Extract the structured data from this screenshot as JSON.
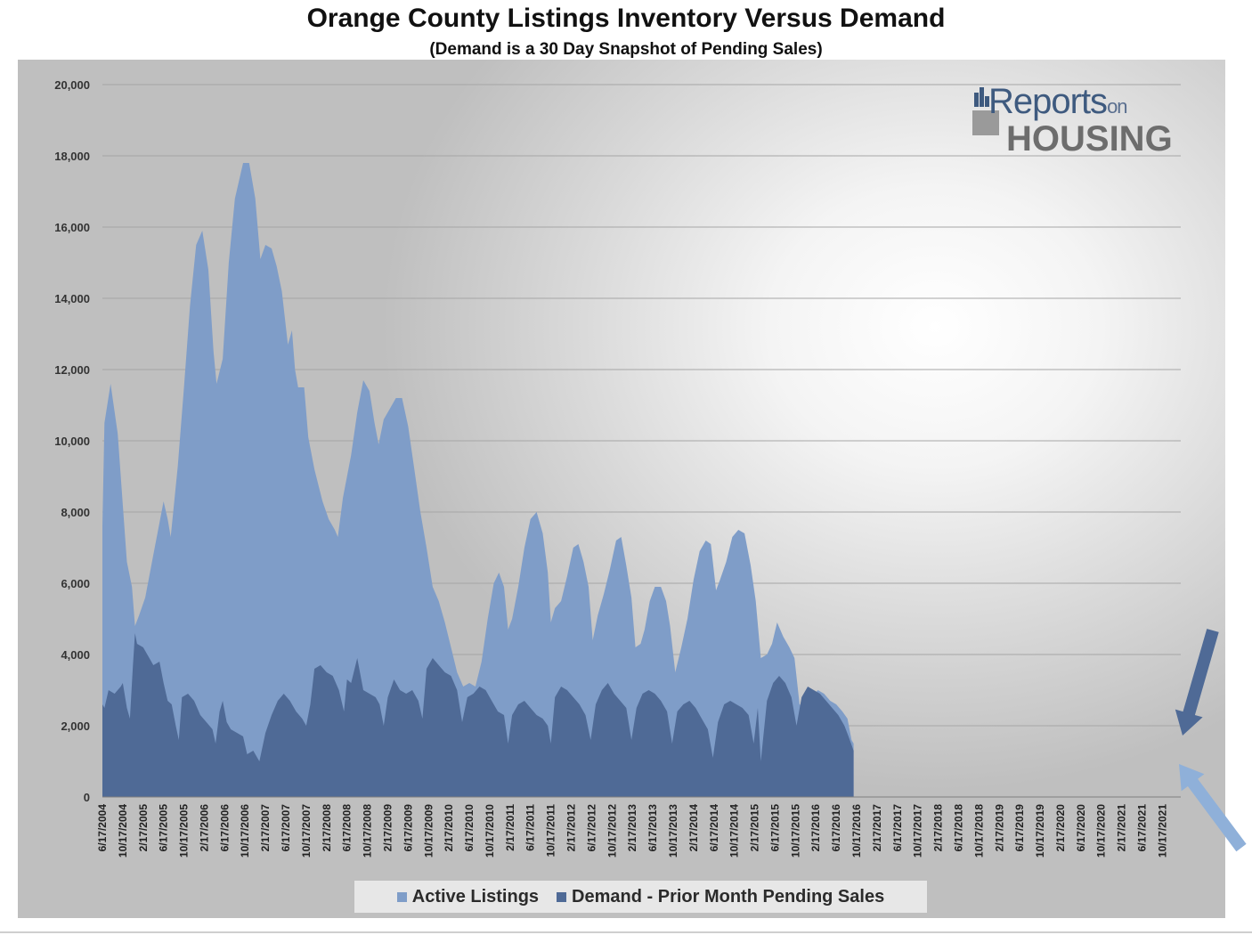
{
  "chart_data": {
    "type": "area",
    "title": "Orange County Listings Inventory Versus Demand",
    "subtitle": "(Demand is a 30 Day Snapshot of Pending Sales)",
    "ylim": [
      0,
      20000
    ],
    "yticks": [
      "20,000",
      "18,000",
      "16,000",
      "14,000",
      "12,000",
      "10,000",
      "8,000",
      "6,000",
      "4,000",
      "2,000",
      "0"
    ],
    "xtick_labels": [
      "6/17/2004",
      "10/17/2004",
      "2/17/2005",
      "6/17/2005",
      "10/17/2005",
      "2/17/2006",
      "6/17/2006",
      "10/17/2006",
      "2/17/2007",
      "6/17/2007",
      "10/17/2007",
      "2/17/2008",
      "6/17/2008",
      "10/17/2008",
      "2/17/2009",
      "6/17/2009",
      "10/17/2009",
      "2/17/2010",
      "6/17/2010",
      "10/17/2010",
      "2/17/2011",
      "6/17/2011",
      "10/17/2011",
      "2/17/2012",
      "6/17/2012",
      "10/17/2012",
      "2/17/2013",
      "6/17/2013",
      "10/17/2013",
      "2/17/2014",
      "6/17/2014",
      "10/17/2014",
      "2/17/2015",
      "6/17/2015",
      "10/17/2015",
      "2/17/2016",
      "6/17/2016",
      "10/17/2016",
      "2/17/2017",
      "6/17/2017",
      "10/17/2017",
      "2/17/2018",
      "6/17/2018",
      "10/17/2018",
      "2/17/2019",
      "6/17/2019",
      "10/17/2019",
      "2/17/2020",
      "6/17/2020",
      "10/17/2020",
      "2/17/2021",
      "6/17/2021",
      "10/17/2021"
    ],
    "grid": true,
    "legend_position": "bottom",
    "series": [
      {
        "name": "Active Listings",
        "color": "#7f9dc8",
        "points": [
          [
            0,
            7600
          ],
          [
            0.1,
            10500
          ],
          [
            0.4,
            11600
          ],
          [
            0.75,
            10200
          ],
          [
            1.0,
            8200
          ],
          [
            1.2,
            6600
          ],
          [
            1.45,
            5900
          ],
          [
            1.6,
            4800
          ],
          [
            1.8,
            5100
          ],
          [
            2.1,
            5600
          ],
          [
            2.5,
            6800
          ],
          [
            2.8,
            7700
          ],
          [
            3.0,
            8300
          ],
          [
            3.2,
            7800
          ],
          [
            3.35,
            7300
          ],
          [
            3.7,
            9300
          ],
          [
            4.0,
            11500
          ],
          [
            4.3,
            13800
          ],
          [
            4.6,
            15500
          ],
          [
            4.9,
            15900
          ],
          [
            5.2,
            14800
          ],
          [
            5.45,
            12500
          ],
          [
            5.6,
            11600
          ],
          [
            5.9,
            12300
          ],
          [
            6.2,
            15000
          ],
          [
            6.5,
            16800
          ],
          [
            6.9,
            17800
          ],
          [
            7.2,
            17800
          ],
          [
            7.5,
            16800
          ],
          [
            7.75,
            15100
          ],
          [
            8.0,
            15500
          ],
          [
            8.3,
            15400
          ],
          [
            8.55,
            14900
          ],
          [
            8.8,
            14200
          ],
          [
            9.1,
            12700
          ],
          [
            9.3,
            13100
          ],
          [
            9.45,
            12000
          ],
          [
            9.6,
            11500
          ],
          [
            9.9,
            11500
          ],
          [
            10.1,
            10100
          ],
          [
            10.4,
            9200
          ],
          [
            10.8,
            8300
          ],
          [
            11.1,
            7800
          ],
          [
            11.4,
            7500
          ],
          [
            11.55,
            7300
          ],
          [
            11.8,
            8400
          ],
          [
            12.2,
            9600
          ],
          [
            12.5,
            10800
          ],
          [
            12.8,
            11700
          ],
          [
            13.1,
            11400
          ],
          [
            13.35,
            10500
          ],
          [
            13.55,
            9900
          ],
          [
            13.8,
            10600
          ],
          [
            14.1,
            10900
          ],
          [
            14.4,
            11200
          ],
          [
            14.7,
            11200
          ],
          [
            15.0,
            10400
          ],
          [
            15.3,
            9200
          ],
          [
            15.6,
            8000
          ],
          [
            15.9,
            7000
          ],
          [
            16.2,
            5900
          ],
          [
            16.5,
            5500
          ],
          [
            16.8,
            4900
          ],
          [
            17.1,
            4200
          ],
          [
            17.4,
            3500
          ],
          [
            17.7,
            3100
          ],
          [
            18.0,
            3200
          ],
          [
            18.3,
            3100
          ],
          [
            18.6,
            3800
          ],
          [
            18.9,
            5000
          ],
          [
            19.2,
            6000
          ],
          [
            19.45,
            6300
          ],
          [
            19.7,
            5900
          ],
          [
            19.9,
            4700
          ],
          [
            20.1,
            5000
          ],
          [
            20.4,
            5900
          ],
          [
            20.7,
            7000
          ],
          [
            21.0,
            7800
          ],
          [
            21.3,
            8000
          ],
          [
            21.6,
            7400
          ],
          [
            21.85,
            6300
          ],
          [
            22.0,
            4900
          ],
          [
            22.2,
            5300
          ],
          [
            22.5,
            5500
          ],
          [
            22.8,
            6200
          ],
          [
            23.1,
            7000
          ],
          [
            23.35,
            7100
          ],
          [
            23.6,
            6600
          ],
          [
            23.85,
            5900
          ],
          [
            24.05,
            4400
          ],
          [
            24.3,
            5100
          ],
          [
            24.6,
            5700
          ],
          [
            24.9,
            6400
          ],
          [
            25.2,
            7200
          ],
          [
            25.45,
            7300
          ],
          [
            25.7,
            6500
          ],
          [
            25.95,
            5600
          ],
          [
            26.15,
            4200
          ],
          [
            26.4,
            4300
          ],
          [
            26.6,
            4700
          ],
          [
            26.85,
            5500
          ],
          [
            27.1,
            5900
          ],
          [
            27.4,
            5900
          ],
          [
            27.65,
            5500
          ],
          [
            27.85,
            4800
          ],
          [
            28.1,
            3500
          ],
          [
            28.4,
            4200
          ],
          [
            28.7,
            5000
          ],
          [
            29.0,
            6100
          ],
          [
            29.3,
            6900
          ],
          [
            29.6,
            7200
          ],
          [
            29.85,
            7100
          ],
          [
            30.1,
            5800
          ],
          [
            30.3,
            6100
          ],
          [
            30.6,
            6600
          ],
          [
            30.9,
            7300
          ],
          [
            31.2,
            7500
          ],
          [
            31.5,
            7400
          ],
          [
            31.8,
            6500
          ],
          [
            32.05,
            5500
          ],
          [
            32.3,
            3900
          ],
          [
            32.6,
            4000
          ],
          [
            32.85,
            4300
          ],
          [
            33.1,
            4900
          ],
          [
            33.4,
            4500
          ],
          [
            33.7,
            4200
          ],
          [
            33.95,
            3900
          ],
          [
            34.2,
            2600
          ],
          [
            34.5,
            2500
          ],
          [
            34.8,
            2800
          ],
          [
            35.1,
            3000
          ],
          [
            35.4,
            2900
          ],
          [
            35.7,
            2700
          ],
          [
            36.0,
            2600
          ],
          [
            36.3,
            2400
          ],
          [
            36.55,
            2200
          ],
          [
            36.75,
            1600
          ],
          [
            36.85,
            1500
          ]
        ]
      },
      {
        "name": "Demand - Prior Month Pending Sales",
        "color": "#4f6a96",
        "points": [
          [
            0,
            2600
          ],
          [
            0.1,
            2500
          ],
          [
            0.3,
            3000
          ],
          [
            0.6,
            2900
          ],
          [
            0.9,
            3100
          ],
          [
            1.0,
            3200
          ],
          [
            1.2,
            2500
          ],
          [
            1.35,
            2200
          ],
          [
            1.5,
            3700
          ],
          [
            1.6,
            4600
          ],
          [
            1.7,
            4300
          ],
          [
            2.0,
            4200
          ],
          [
            2.3,
            3900
          ],
          [
            2.5,
            3700
          ],
          [
            2.8,
            3800
          ],
          [
            3.0,
            3200
          ],
          [
            3.2,
            2700
          ],
          [
            3.4,
            2600
          ],
          [
            3.6,
            2000
          ],
          [
            3.75,
            1600
          ],
          [
            3.9,
            2800
          ],
          [
            4.2,
            2900
          ],
          [
            4.5,
            2700
          ],
          [
            4.8,
            2300
          ],
          [
            5.1,
            2100
          ],
          [
            5.4,
            1900
          ],
          [
            5.55,
            1500
          ],
          [
            5.75,
            2400
          ],
          [
            5.9,
            2700
          ],
          [
            6.1,
            2100
          ],
          [
            6.3,
            1900
          ],
          [
            6.6,
            1800
          ],
          [
            6.9,
            1700
          ],
          [
            7.1,
            1200
          ],
          [
            7.4,
            1300
          ],
          [
            7.7,
            1000
          ],
          [
            8.0,
            1800
          ],
          [
            8.3,
            2300
          ],
          [
            8.6,
            2700
          ],
          [
            8.9,
            2900
          ],
          [
            9.2,
            2700
          ],
          [
            9.5,
            2400
          ],
          [
            9.8,
            2200
          ],
          [
            10.0,
            2000
          ],
          [
            10.2,
            2600
          ],
          [
            10.4,
            3600
          ],
          [
            10.7,
            3700
          ],
          [
            11.0,
            3500
          ],
          [
            11.3,
            3400
          ],
          [
            11.6,
            3000
          ],
          [
            11.85,
            2400
          ],
          [
            12.0,
            3300
          ],
          [
            12.2,
            3200
          ],
          [
            12.5,
            3900
          ],
          [
            12.8,
            3000
          ],
          [
            13.1,
            2900
          ],
          [
            13.4,
            2800
          ],
          [
            13.6,
            2600
          ],
          [
            13.8,
            2000
          ],
          [
            14.0,
            2800
          ],
          [
            14.3,
            3300
          ],
          [
            14.6,
            3000
          ],
          [
            14.9,
            2900
          ],
          [
            15.2,
            3000
          ],
          [
            15.5,
            2700
          ],
          [
            15.7,
            2200
          ],
          [
            15.9,
            3600
          ],
          [
            16.2,
            3900
          ],
          [
            16.5,
            3700
          ],
          [
            16.8,
            3500
          ],
          [
            17.1,
            3400
          ],
          [
            17.4,
            3000
          ],
          [
            17.65,
            2100
          ],
          [
            17.9,
            2800
          ],
          [
            18.2,
            2900
          ],
          [
            18.5,
            3100
          ],
          [
            18.8,
            3000
          ],
          [
            19.1,
            2700
          ],
          [
            19.4,
            2400
          ],
          [
            19.7,
            2300
          ],
          [
            19.9,
            1500
          ],
          [
            20.1,
            2300
          ],
          [
            20.4,
            2600
          ],
          [
            20.7,
            2700
          ],
          [
            21.0,
            2500
          ],
          [
            21.3,
            2300
          ],
          [
            21.6,
            2200
          ],
          [
            21.85,
            2000
          ],
          [
            22.0,
            1500
          ],
          [
            22.2,
            2800
          ],
          [
            22.5,
            3100
          ],
          [
            22.8,
            3000
          ],
          [
            23.1,
            2800
          ],
          [
            23.4,
            2600
          ],
          [
            23.7,
            2300
          ],
          [
            23.95,
            1600
          ],
          [
            24.2,
            2600
          ],
          [
            24.5,
            3000
          ],
          [
            24.8,
            3200
          ],
          [
            25.1,
            2900
          ],
          [
            25.4,
            2700
          ],
          [
            25.7,
            2500
          ],
          [
            25.95,
            1600
          ],
          [
            26.2,
            2500
          ],
          [
            26.5,
            2900
          ],
          [
            26.8,
            3000
          ],
          [
            27.1,
            2900
          ],
          [
            27.4,
            2700
          ],
          [
            27.7,
            2400
          ],
          [
            27.95,
            1500
          ],
          [
            28.2,
            2400
          ],
          [
            28.5,
            2600
          ],
          [
            28.8,
            2700
          ],
          [
            29.1,
            2500
          ],
          [
            29.4,
            2200
          ],
          [
            29.7,
            1900
          ],
          [
            29.95,
            1100
          ],
          [
            30.2,
            2100
          ],
          [
            30.5,
            2600
          ],
          [
            30.8,
            2700
          ],
          [
            31.1,
            2600
          ],
          [
            31.4,
            2500
          ],
          [
            31.7,
            2300
          ],
          [
            31.95,
            1500
          ],
          [
            32.15,
            2500
          ],
          [
            32.3,
            1000
          ],
          [
            32.6,
            2700
          ],
          [
            32.9,
            3200
          ],
          [
            33.2,
            3400
          ],
          [
            33.5,
            3200
          ],
          [
            33.8,
            2800
          ],
          [
            34.05,
            2000
          ],
          [
            34.3,
            2800
          ],
          [
            34.6,
            3100
          ],
          [
            34.9,
            3000
          ],
          [
            35.2,
            2900
          ],
          [
            35.5,
            2700
          ],
          [
            35.8,
            2500
          ],
          [
            36.1,
            2300
          ],
          [
            36.4,
            2000
          ],
          [
            36.6,
            1700
          ],
          [
            36.85,
            1300
          ]
        ]
      }
    ]
  },
  "logo": {
    "top_text": "Reports",
    "small_text": "on",
    "bottom_text": "HOUSING"
  },
  "legend": {
    "items": [
      {
        "label": "Active Listings",
        "color": "#7f9dc8"
      },
      {
        "label": "Demand - Prior Month Pending Sales",
        "color": "#4f6a96"
      }
    ]
  },
  "annotations": {
    "arrow_dark_color": "#4f6a96",
    "arrow_light_color": "#8fb0d9"
  }
}
